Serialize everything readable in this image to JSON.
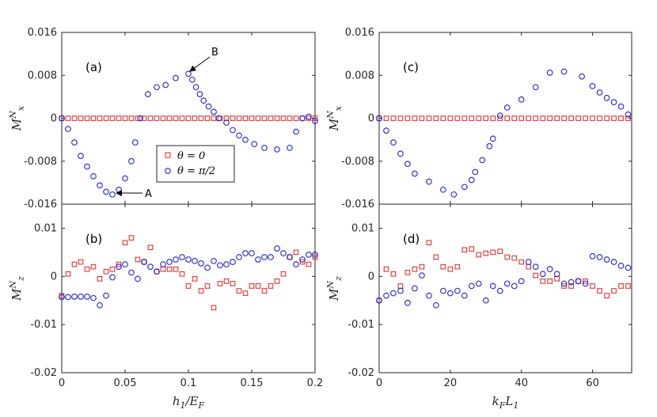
{
  "colors": {
    "theta0": "#e0201f",
    "thetaPi2": "#1f24d8",
    "axis": "#262626"
  },
  "legend": {
    "theta0_label": "θ = 0",
    "thetaPi2_label": "θ = π/2"
  },
  "annotations": {
    "A": "A",
    "B": "B"
  },
  "chart_data": [
    {
      "id": "panel-a",
      "type": "scatter",
      "panel_label": "(a)",
      "xlabel": "h1/EF",
      "ylabel": "Mx^N",
      "xlim": [
        0,
        0.2
      ],
      "ylim": [
        -0.016,
        0.016
      ],
      "xticks": [
        0,
        0.05,
        0.1,
        0.15,
        0.2
      ],
      "xtick_labels": [
        "0",
        "0.05",
        "0.1",
        "0.15",
        "0.2"
      ],
      "yticks": [
        -0.016,
        -0.008,
        0,
        0.008,
        0.016
      ],
      "ytick_labels": [
        "-0.016",
        "-0.008",
        "0",
        "0.008",
        "0.016"
      ],
      "series": [
        {
          "name": "θ = 0",
          "marker": "square",
          "x": [
            0.0,
            0.005,
            0.01,
            0.015,
            0.02,
            0.025,
            0.03,
            0.035,
            0.04,
            0.045,
            0.05,
            0.055,
            0.06,
            0.065,
            0.07,
            0.075,
            0.08,
            0.085,
            0.09,
            0.095,
            0.1,
            0.105,
            0.11,
            0.115,
            0.12,
            0.125,
            0.13,
            0.135,
            0.14,
            0.145,
            0.15,
            0.155,
            0.16,
            0.165,
            0.17,
            0.175,
            0.18,
            0.185,
            0.19,
            0.195,
            0.2
          ],
          "y": [
            0,
            0,
            0,
            0,
            0,
            0,
            0,
            0,
            0,
            0,
            0,
            0,
            0,
            0,
            0,
            0,
            0,
            0,
            0,
            0,
            0,
            0,
            0,
            0,
            0,
            0,
            0,
            0,
            0,
            0,
            0,
            0,
            0,
            0,
            0,
            0,
            0,
            0,
            0,
            0,
            0
          ]
        },
        {
          "name": "θ = π/2",
          "marker": "circle",
          "x": [
            0.0,
            0.005,
            0.01,
            0.015,
            0.02,
            0.025,
            0.03,
            0.035,
            0.04,
            0.045,
            0.05,
            0.055,
            0.058,
            0.062,
            0.068,
            0.075,
            0.082,
            0.09,
            0.1,
            0.103,
            0.106,
            0.109,
            0.112,
            0.116,
            0.12,
            0.124,
            0.13,
            0.135,
            0.14,
            0.145,
            0.152,
            0.16,
            0.17,
            0.18,
            0.185,
            0.19,
            0.195,
            0.2
          ],
          "y": [
            0,
            -0.002,
            -0.0045,
            -0.007,
            -0.009,
            -0.0108,
            -0.0125,
            -0.0137,
            -0.0142,
            -0.0133,
            -0.0112,
            -0.008,
            -0.0045,
            0,
            0.0045,
            0.0058,
            0.0062,
            0.0075,
            0.0083,
            0.0072,
            0.0058,
            0.0045,
            0.0033,
            0.0022,
            0.0012,
            0,
            -0.0008,
            -0.0022,
            -0.0032,
            -0.004,
            -0.0048,
            -0.0055,
            -0.0058,
            -0.0055,
            -0.0025,
            0,
            0.0003,
            -0.0005
          ]
        }
      ]
    },
    {
      "id": "panel-b",
      "type": "scatter",
      "panel_label": "(b)",
      "xlabel": "h1/EF",
      "ylabel": "Mz^N",
      "xlim": [
        0,
        0.2
      ],
      "ylim": [
        -0.02,
        0.015
      ],
      "xticks": [
        0,
        0.05,
        0.1,
        0.15,
        0.2
      ],
      "xtick_labels": [
        "0",
        "0.05",
        "0.1",
        "0.15",
        "0.2"
      ],
      "yticks": [
        -0.02,
        -0.01,
        0,
        0.01
      ],
      "ytick_labels": [
        "-0.02",
        "-0.01",
        "0",
        "0.01"
      ],
      "series": [
        {
          "name": "θ = 0",
          "marker": "square",
          "x": [
            0.0,
            0.005,
            0.01,
            0.015,
            0.02,
            0.025,
            0.03,
            0.035,
            0.04,
            0.045,
            0.05,
            0.055,
            0.06,
            0.065,
            0.07,
            0.075,
            0.08,
            0.085,
            0.09,
            0.095,
            0.1,
            0.105,
            0.11,
            0.115,
            0.12,
            0.125,
            0.13,
            0.135,
            0.14,
            0.145,
            0.15,
            0.155,
            0.16,
            0.165,
            0.17,
            0.175,
            0.18,
            0.185,
            0.19,
            0.195,
            0.2
          ],
          "y": [
            -0.004,
            0.0005,
            0.0025,
            0.003,
            0.0015,
            0.002,
            -0.0005,
            0.001,
            0.0015,
            0.0025,
            0.007,
            0.008,
            0.0035,
            0.003,
            0.006,
            0.001,
            0.0015,
            0.0015,
            0.0015,
            0.0005,
            -0.002,
            -0.0005,
            -0.003,
            -0.002,
            -0.0065,
            -0.0015,
            -0.001,
            -0.0015,
            -0.003,
            -0.0035,
            -0.002,
            -0.002,
            -0.003,
            -0.002,
            -0.001,
            0.0005,
            0.004,
            0.005,
            0.003,
            0.0025,
            0.004
          ]
        },
        {
          "name": "θ = π/2",
          "marker": "circle",
          "x": [
            0.0,
            0.005,
            0.01,
            0.015,
            0.02,
            0.025,
            0.03,
            0.035,
            0.04,
            0.045,
            0.05,
            0.055,
            0.06,
            0.065,
            0.07,
            0.075,
            0.08,
            0.085,
            0.09,
            0.095,
            0.1,
            0.105,
            0.11,
            0.115,
            0.12,
            0.125,
            0.13,
            0.135,
            0.14,
            0.145,
            0.15,
            0.155,
            0.16,
            0.165,
            0.17,
            0.175,
            0.18,
            0.185,
            0.19,
            0.195,
            0.2
          ],
          "y": [
            -0.0043,
            -0.0043,
            -0.0042,
            -0.0042,
            -0.0042,
            -0.0045,
            -0.006,
            -0.004,
            -0.0002,
            0.002,
            0.0025,
            0.0008,
            -0.0005,
            0.003,
            0.002,
            0.001,
            0.0025,
            0.003,
            0.0035,
            0.004,
            0.0035,
            0.0032,
            0.0027,
            0.0018,
            0.0032,
            0.0023,
            0.0025,
            0.003,
            0.004,
            0.0048,
            0.0048,
            0.0035,
            0.004,
            0.004,
            0.0058,
            0.0048,
            0.004,
            0.0025,
            0.0035,
            0.0045,
            0.0045
          ]
        }
      ]
    },
    {
      "id": "panel-c",
      "type": "scatter",
      "panel_label": "(c)",
      "xlabel": "kF L1",
      "ylabel": "Mx^N",
      "xlim": [
        0,
        71
      ],
      "ylim": [
        -0.016,
        0.016
      ],
      "xticks": [
        0,
        20,
        40,
        60
      ],
      "xtick_labels": [
        "0",
        "20",
        "40",
        "60"
      ],
      "yticks": [
        -0.016,
        -0.008,
        0,
        0.008,
        0.016
      ],
      "ytick_labels": [
        "-0.016",
        "-0.008",
        "0",
        "0.008",
        "0.016"
      ],
      "series": [
        {
          "name": "θ = 0",
          "marker": "square",
          "x": [
            0,
            2,
            4,
            6,
            8,
            10,
            12,
            14,
            16,
            18,
            20,
            22,
            24,
            26,
            28,
            30,
            32,
            34,
            36,
            38,
            40,
            42,
            44,
            46,
            48,
            50,
            52,
            54,
            56,
            58,
            60,
            62,
            64,
            66,
            68,
            70
          ],
          "y": [
            0,
            0,
            0,
            0,
            0,
            0,
            0,
            0,
            0,
            0,
            0,
            0,
            0,
            0,
            0,
            0,
            0,
            0,
            0,
            0,
            0,
            0,
            0,
            0,
            0,
            0,
            0,
            0,
            0,
            0,
            0,
            0,
            0,
            0,
            0,
            0
          ]
        },
        {
          "name": "θ = π/2",
          "marker": "circle",
          "x": [
            0,
            2,
            4,
            6,
            8,
            10,
            14,
            18,
            21,
            24,
            26,
            27,
            29,
            31,
            32,
            34,
            36,
            40,
            44,
            48,
            52,
            57,
            60,
            62,
            64,
            66,
            68,
            70
          ],
          "y": [
            0,
            -0.0023,
            -0.0045,
            -0.0066,
            -0.0085,
            -0.0103,
            -0.0118,
            -0.0133,
            -0.0142,
            -0.0128,
            -0.0115,
            -0.01,
            -0.0078,
            -0.0052,
            -0.0038,
            0.0005,
            0.002,
            0.0035,
            0.0058,
            0.0085,
            0.0087,
            0.0078,
            0.006,
            0.0048,
            0.0038,
            0.003,
            0.0022,
            0.0007
          ]
        }
      ]
    },
    {
      "id": "panel-d",
      "type": "scatter",
      "panel_label": "(d)",
      "xlabel": "kF L1",
      "ylabel": "Mz^N",
      "xlim": [
        0,
        71
      ],
      "ylim": [
        -0.02,
        0.015
      ],
      "xticks": [
        0,
        20,
        40,
        60
      ],
      "xtick_labels": [
        "0",
        "20",
        "40",
        "60"
      ],
      "yticks": [
        -0.02,
        -0.01,
        0,
        0.01
      ],
      "ytick_labels": [
        "-0.02",
        "-0.01",
        "0",
        "0.01"
      ],
      "series": [
        {
          "name": "θ = 0",
          "marker": "square",
          "x": [
            0,
            2,
            4,
            6,
            8,
            10,
            12,
            14,
            16,
            18,
            20,
            22,
            24,
            26,
            28,
            30,
            32,
            34,
            36,
            38,
            40,
            42,
            44,
            46,
            48,
            50,
            52,
            54,
            56,
            58,
            60,
            62,
            64,
            66,
            68,
            70
          ],
          "y": [
            -0.005,
            0.0015,
            0.0005,
            -0.002,
            0.0008,
            0.0015,
            0.002,
            0.007,
            0.004,
            0.002,
            0.0015,
            0.002,
            0.0055,
            0.0057,
            0.0045,
            0.0048,
            0.005,
            0.0052,
            0.004,
            0.0038,
            0.003,
            0.002,
            0.0002,
            -0.001,
            -0.001,
            -0.0005,
            -0.002,
            -0.002,
            -0.001,
            -0.001,
            -0.002,
            -0.003,
            -0.004,
            -0.003,
            -0.002,
            -0.002
          ]
        },
        {
          "name": "θ = π/2",
          "marker": "circle",
          "x": [
            0,
            2,
            4,
            6,
            8,
            10,
            12,
            14,
            16,
            18,
            20,
            22,
            24,
            26,
            28,
            30,
            32,
            34,
            36,
            38,
            40,
            42,
            44,
            46,
            48,
            50,
            52,
            54,
            56,
            58,
            60,
            62,
            64,
            66,
            68,
            70
          ],
          "y": [
            -0.005,
            -0.004,
            -0.0035,
            -0.003,
            -0.0055,
            -0.0025,
            0.0002,
            -0.004,
            -0.006,
            -0.003,
            -0.0035,
            -0.003,
            -0.004,
            -0.002,
            -0.0015,
            -0.005,
            -0.002,
            -0.003,
            -0.0015,
            -0.002,
            -0.001,
            0.003,
            0.002,
            0.0005,
            0.0015,
            0.0005,
            -0.0015,
            -0.0012,
            -0.001,
            -0.0015,
            0.0042,
            0.004,
            0.0035,
            0.003,
            0.0022,
            0.0018
          ]
        }
      ]
    }
  ]
}
